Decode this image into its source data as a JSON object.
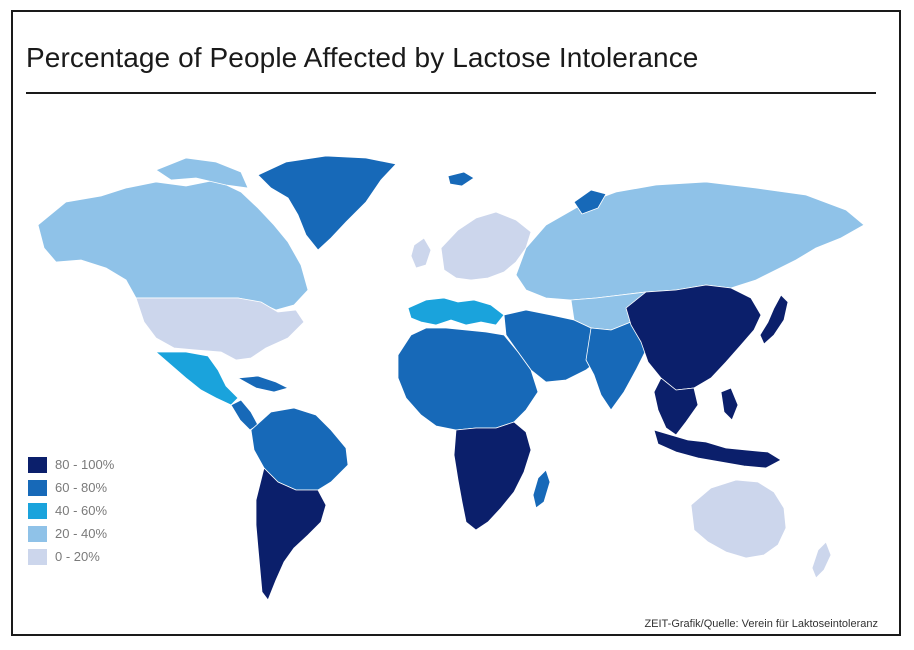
{
  "title": "Percentage of People Affected by Lactose Intolerance",
  "source": "ZEIT-Grafik/Quelle: Verein für Laktoseintoleranz",
  "colors": {
    "c80_100": "#0b1f6b",
    "c60_80": "#1769b8",
    "c40_60": "#1aa3dc",
    "c20_40": "#8fc2e8",
    "c0_20": "#ccd6ec"
  },
  "legend": [
    {
      "label": "80 - 100%",
      "color": "#0b1f6b"
    },
    {
      "label": "60 - 80%",
      "color": "#1769b8"
    },
    {
      "label": "40 - 60%",
      "color": "#1aa3dc"
    },
    {
      "label": "20 - 40%",
      "color": "#8fc2e8"
    },
    {
      "label": "0 - 20%",
      "color": "#ccd6ec"
    }
  ]
}
